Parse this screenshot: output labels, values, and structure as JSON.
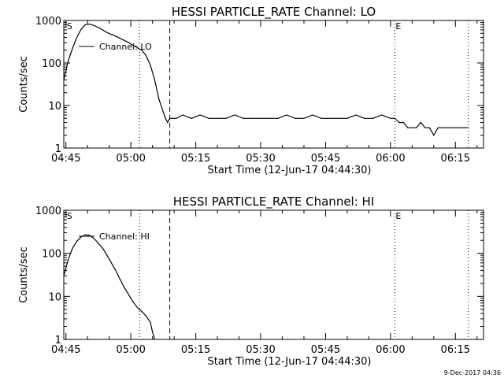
{
  "timestamp": "9-Dec-2017 04:36",
  "chart_data": [
    {
      "type": "line",
      "title": "HESSI PARTICLE_RATE Channel: LO",
      "xlabel": "Start Time (12-Jun-17 04:44:30)",
      "ylabel": "Counts/sec",
      "yscale": "log",
      "ylim": [
        1,
        1000
      ],
      "xlim": [
        "04:44:30",
        "06:21:30"
      ],
      "x_ticks": [
        "04:45",
        "05:00",
        "05:15",
        "05:30",
        "05:45",
        "06:00",
        "06:15"
      ],
      "y_ticks": [
        "1",
        "10",
        "100",
        "1000"
      ],
      "markers": [
        {
          "time": "04:45",
          "label": "S",
          "style": "none"
        },
        {
          "time": "05:02",
          "label": "",
          "style": "dotted"
        },
        {
          "time": "05:09",
          "label": "",
          "style": "dashed"
        },
        {
          "time": "06:01",
          "label": "E",
          "style": "dotted"
        },
        {
          "time": "06:18",
          "label": "",
          "style": "dotted"
        }
      ],
      "legend": {
        "entries": [
          "Channel: LO"
        ],
        "placement": "top-left"
      },
      "series": [
        {
          "name": "Channel: LO",
          "x": [
            "04:44:30",
            "04:45:30",
            "04:46:30",
            "04:47:30",
            "04:48:30",
            "04:49:30",
            "04:50:30",
            "04:51:30",
            "04:52:30",
            "04:53:30",
            "04:54:30",
            "04:55:30",
            "04:56:30",
            "04:57:30",
            "04:58:30",
            "04:59:30",
            "05:00:30",
            "05:01:30",
            "05:02:30",
            "05:03:30",
            "05:04:30",
            "05:05:30",
            "05:06:30",
            "05:07:30",
            "05:08:00",
            "05:08:30",
            "05:09:00",
            "05:09:30",
            "05:10:30",
            "05:12:00",
            "05:14:00",
            "05:16:00",
            "05:18:00",
            "05:20:00",
            "05:22:00",
            "05:24:00",
            "05:26:00",
            "05:28:00",
            "05:30:00",
            "05:32:00",
            "05:34:00",
            "05:36:00",
            "05:38:00",
            "05:40:00",
            "05:42:00",
            "05:44:00",
            "05:46:00",
            "05:48:00",
            "05:50:00",
            "05:52:00",
            "05:54:00",
            "05:56:00",
            "05:58:00",
            "06:00:00",
            "06:01:00",
            "06:02:00",
            "06:03:00",
            "06:04:00",
            "06:05:00",
            "06:06:00",
            "06:07:00",
            "06:08:00",
            "06:09:00",
            "06:10:00",
            "06:11:00",
            "06:12:00",
            "06:13:00",
            "06:14:00",
            "06:15:00",
            "06:16:00",
            "06:17:00",
            "06:18:00"
          ],
          "values": [
            40,
            110,
            220,
            400,
            620,
            800,
            820,
            760,
            680,
            600,
            520,
            470,
            430,
            380,
            340,
            300,
            260,
            230,
            200,
            150,
            90,
            40,
            14,
            7,
            5,
            4,
            5,
            5,
            5,
            6,
            5,
            6,
            5,
            5,
            5,
            6,
            5,
            5,
            5,
            5,
            5,
            6,
            5,
            5,
            6,
            5,
            5,
            5,
            5,
            6,
            5,
            5,
            6,
            5,
            5,
            4,
            4,
            3,
            3,
            3,
            4,
            3,
            3,
            2,
            3,
            3,
            3,
            3,
            3,
            3,
            3,
            3
          ]
        }
      ]
    },
    {
      "type": "line",
      "title": "HESSI PARTICLE_RATE Channel: HI",
      "xlabel": "Start Time (12-Jun-17 04:44:30)",
      "ylabel": "Counts/sec",
      "yscale": "log",
      "ylim": [
        1,
        1000
      ],
      "xlim": [
        "04:44:30",
        "06:21:30"
      ],
      "x_ticks": [
        "04:45",
        "05:00",
        "05:15",
        "05:30",
        "05:45",
        "06:00",
        "06:15"
      ],
      "y_ticks": [
        "1",
        "10",
        "100",
        "1000"
      ],
      "markers": [
        {
          "time": "04:45",
          "label": "S",
          "style": "none"
        },
        {
          "time": "05:02",
          "label": "",
          "style": "dotted"
        },
        {
          "time": "05:09",
          "label": "",
          "style": "dashed"
        },
        {
          "time": "06:01",
          "label": "E",
          "style": "dotted"
        },
        {
          "time": "06:18",
          "label": "",
          "style": "dotted"
        }
      ],
      "legend": {
        "entries": [
          "Channel: HI"
        ],
        "placement": "top-left"
      },
      "series": [
        {
          "name": "Channel: HI",
          "x": [
            "04:44:30",
            "04:45:30",
            "04:46:30",
            "04:47:30",
            "04:48:30",
            "04:49:30",
            "04:50:30",
            "04:51:30",
            "04:52:30",
            "04:53:30",
            "04:54:30",
            "04:55:30",
            "04:56:30",
            "04:57:30",
            "04:58:30",
            "04:59:30",
            "05:00:30",
            "05:01:30",
            "05:02:30",
            "05:03:30",
            "05:04:30",
            "05:05:00",
            "05:05:30"
          ],
          "values": [
            30,
            70,
            130,
            190,
            240,
            270,
            260,
            220,
            170,
            130,
            90,
            60,
            40,
            25,
            16,
            11,
            7.5,
            5.5,
            4.5,
            3.5,
            2.5,
            1.5,
            1
          ]
        }
      ]
    }
  ]
}
